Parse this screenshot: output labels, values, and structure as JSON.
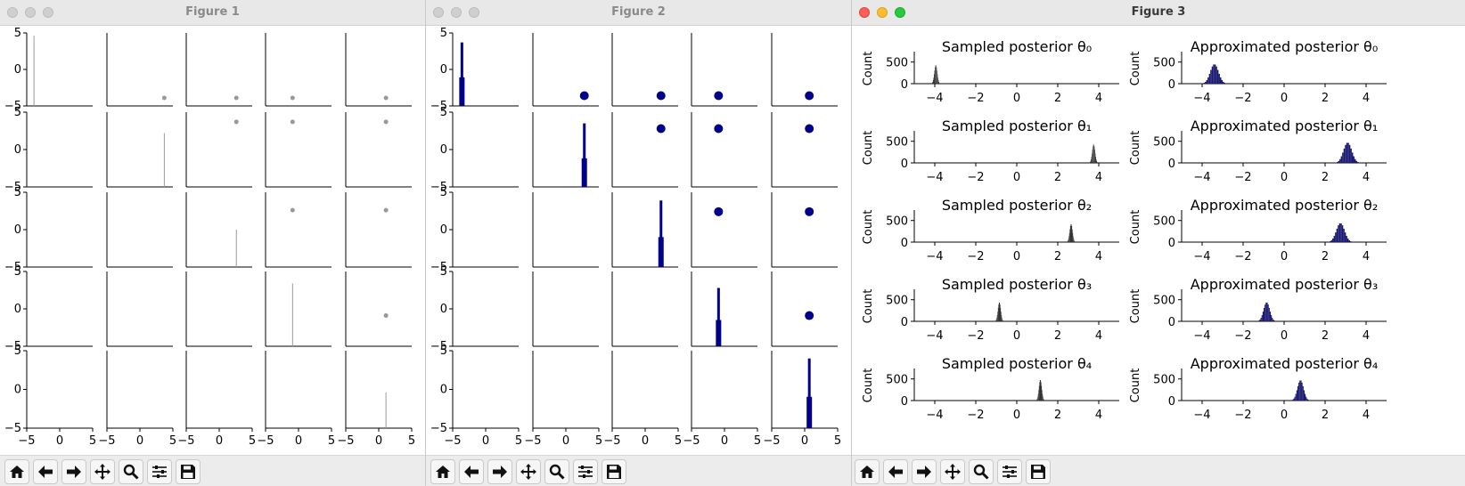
{
  "windows": [
    {
      "title": "Figure 1",
      "active": false
    },
    {
      "title": "Figure 2",
      "active": false
    },
    {
      "title": "Figure 3",
      "active": true
    }
  ],
  "toolbar": [
    {
      "name": "home-button",
      "icon": "home-icon"
    },
    {
      "name": "back-button",
      "icon": "arrow-left-icon"
    },
    {
      "name": "forward-button",
      "icon": "arrow-right-icon"
    },
    {
      "name": "pan-button",
      "icon": "move-icon"
    },
    {
      "name": "zoom-button",
      "icon": "magnifier-icon"
    },
    {
      "name": "configure-subplots-button",
      "icon": "sliders-icon"
    },
    {
      "name": "save-button",
      "icon": "floppy-disk-icon"
    }
  ],
  "colors": {
    "figure1": "#999999",
    "figure2": "#00008b",
    "figure3_left": "#333333",
    "figure3_right": "#191970"
  },
  "chart_data": [
    {
      "figure": "Figure 1",
      "type": "scatter-matrix",
      "grid": "5x5",
      "xlim": [
        -5,
        5
      ],
      "ylim": [
        -5,
        5
      ],
      "xticks": [
        "−5",
        "0",
        "5"
      ],
      "yticks": [
        "5",
        "0",
        "−5"
      ],
      "means": [
        -3.9,
        3.7,
        2.6,
        -0.9,
        1.1
      ],
      "diagonal_hist_heights": [
        4.6,
        2.2,
        0.0,
        3.4,
        -0.4
      ],
      "color": "#999999"
    },
    {
      "figure": "Figure 2",
      "type": "scatter-matrix",
      "grid": "5x5",
      "xlim": [
        -5,
        5
      ],
      "ylim": [
        -5,
        5
      ],
      "xticks": [
        "−5",
        "0",
        "5"
      ],
      "yticks": [
        "5",
        "0",
        "−5"
      ],
      "means": [
        -3.6,
        2.8,
        2.4,
        -0.9,
        0.7
      ],
      "diagonal_hist_heights": [
        3.7,
        3.5,
        3.9,
        2.8,
        4.0
      ],
      "color": "#00008b"
    },
    {
      "figure": "Figure 3",
      "type": "histogram-grid",
      "ylabel": "Count",
      "xticks": [
        "−4",
        "−2",
        "0",
        "2",
        "4"
      ],
      "yticks": [
        "0",
        "500"
      ],
      "xlim": [
        -5,
        5
      ],
      "ylim": [
        0,
        700
      ],
      "rows": [
        {
          "left_title": "Sampled posterior θ₀",
          "right_title": "Approximated posterior θ₀",
          "left_mean": -3.95,
          "left_sd": 0.07,
          "left_peak": 430,
          "right_mean": -3.4,
          "right_sd": 0.2,
          "right_peak": 450
        },
        {
          "left_title": "Sampled posterior θ₁",
          "right_title": "Approximated posterior θ₁",
          "left_mean": 3.75,
          "left_sd": 0.07,
          "left_peak": 430,
          "right_mean": 3.1,
          "right_sd": 0.2,
          "right_peak": 470
        },
        {
          "left_title": "Sampled posterior θ₂",
          "right_title": "Approximated posterior θ₂",
          "left_mean": 2.65,
          "left_sd": 0.07,
          "left_peak": 420,
          "right_mean": 2.75,
          "right_sd": 0.2,
          "right_peak": 440
        },
        {
          "left_title": "Sampled posterior θ₃",
          "right_title": "Approximated posterior θ₃",
          "left_mean": -0.85,
          "left_sd": 0.07,
          "left_peak": 440,
          "right_mean": -0.85,
          "right_sd": 0.15,
          "right_peak": 440
        },
        {
          "left_title": "Sampled posterior θ₄",
          "right_title": "Approximated posterior θ₄",
          "left_mean": 1.15,
          "left_sd": 0.07,
          "left_peak": 480,
          "right_mean": 0.8,
          "right_sd": 0.15,
          "right_peak": 470
        }
      ],
      "left_color": "#333333",
      "right_color": "#191970"
    }
  ]
}
